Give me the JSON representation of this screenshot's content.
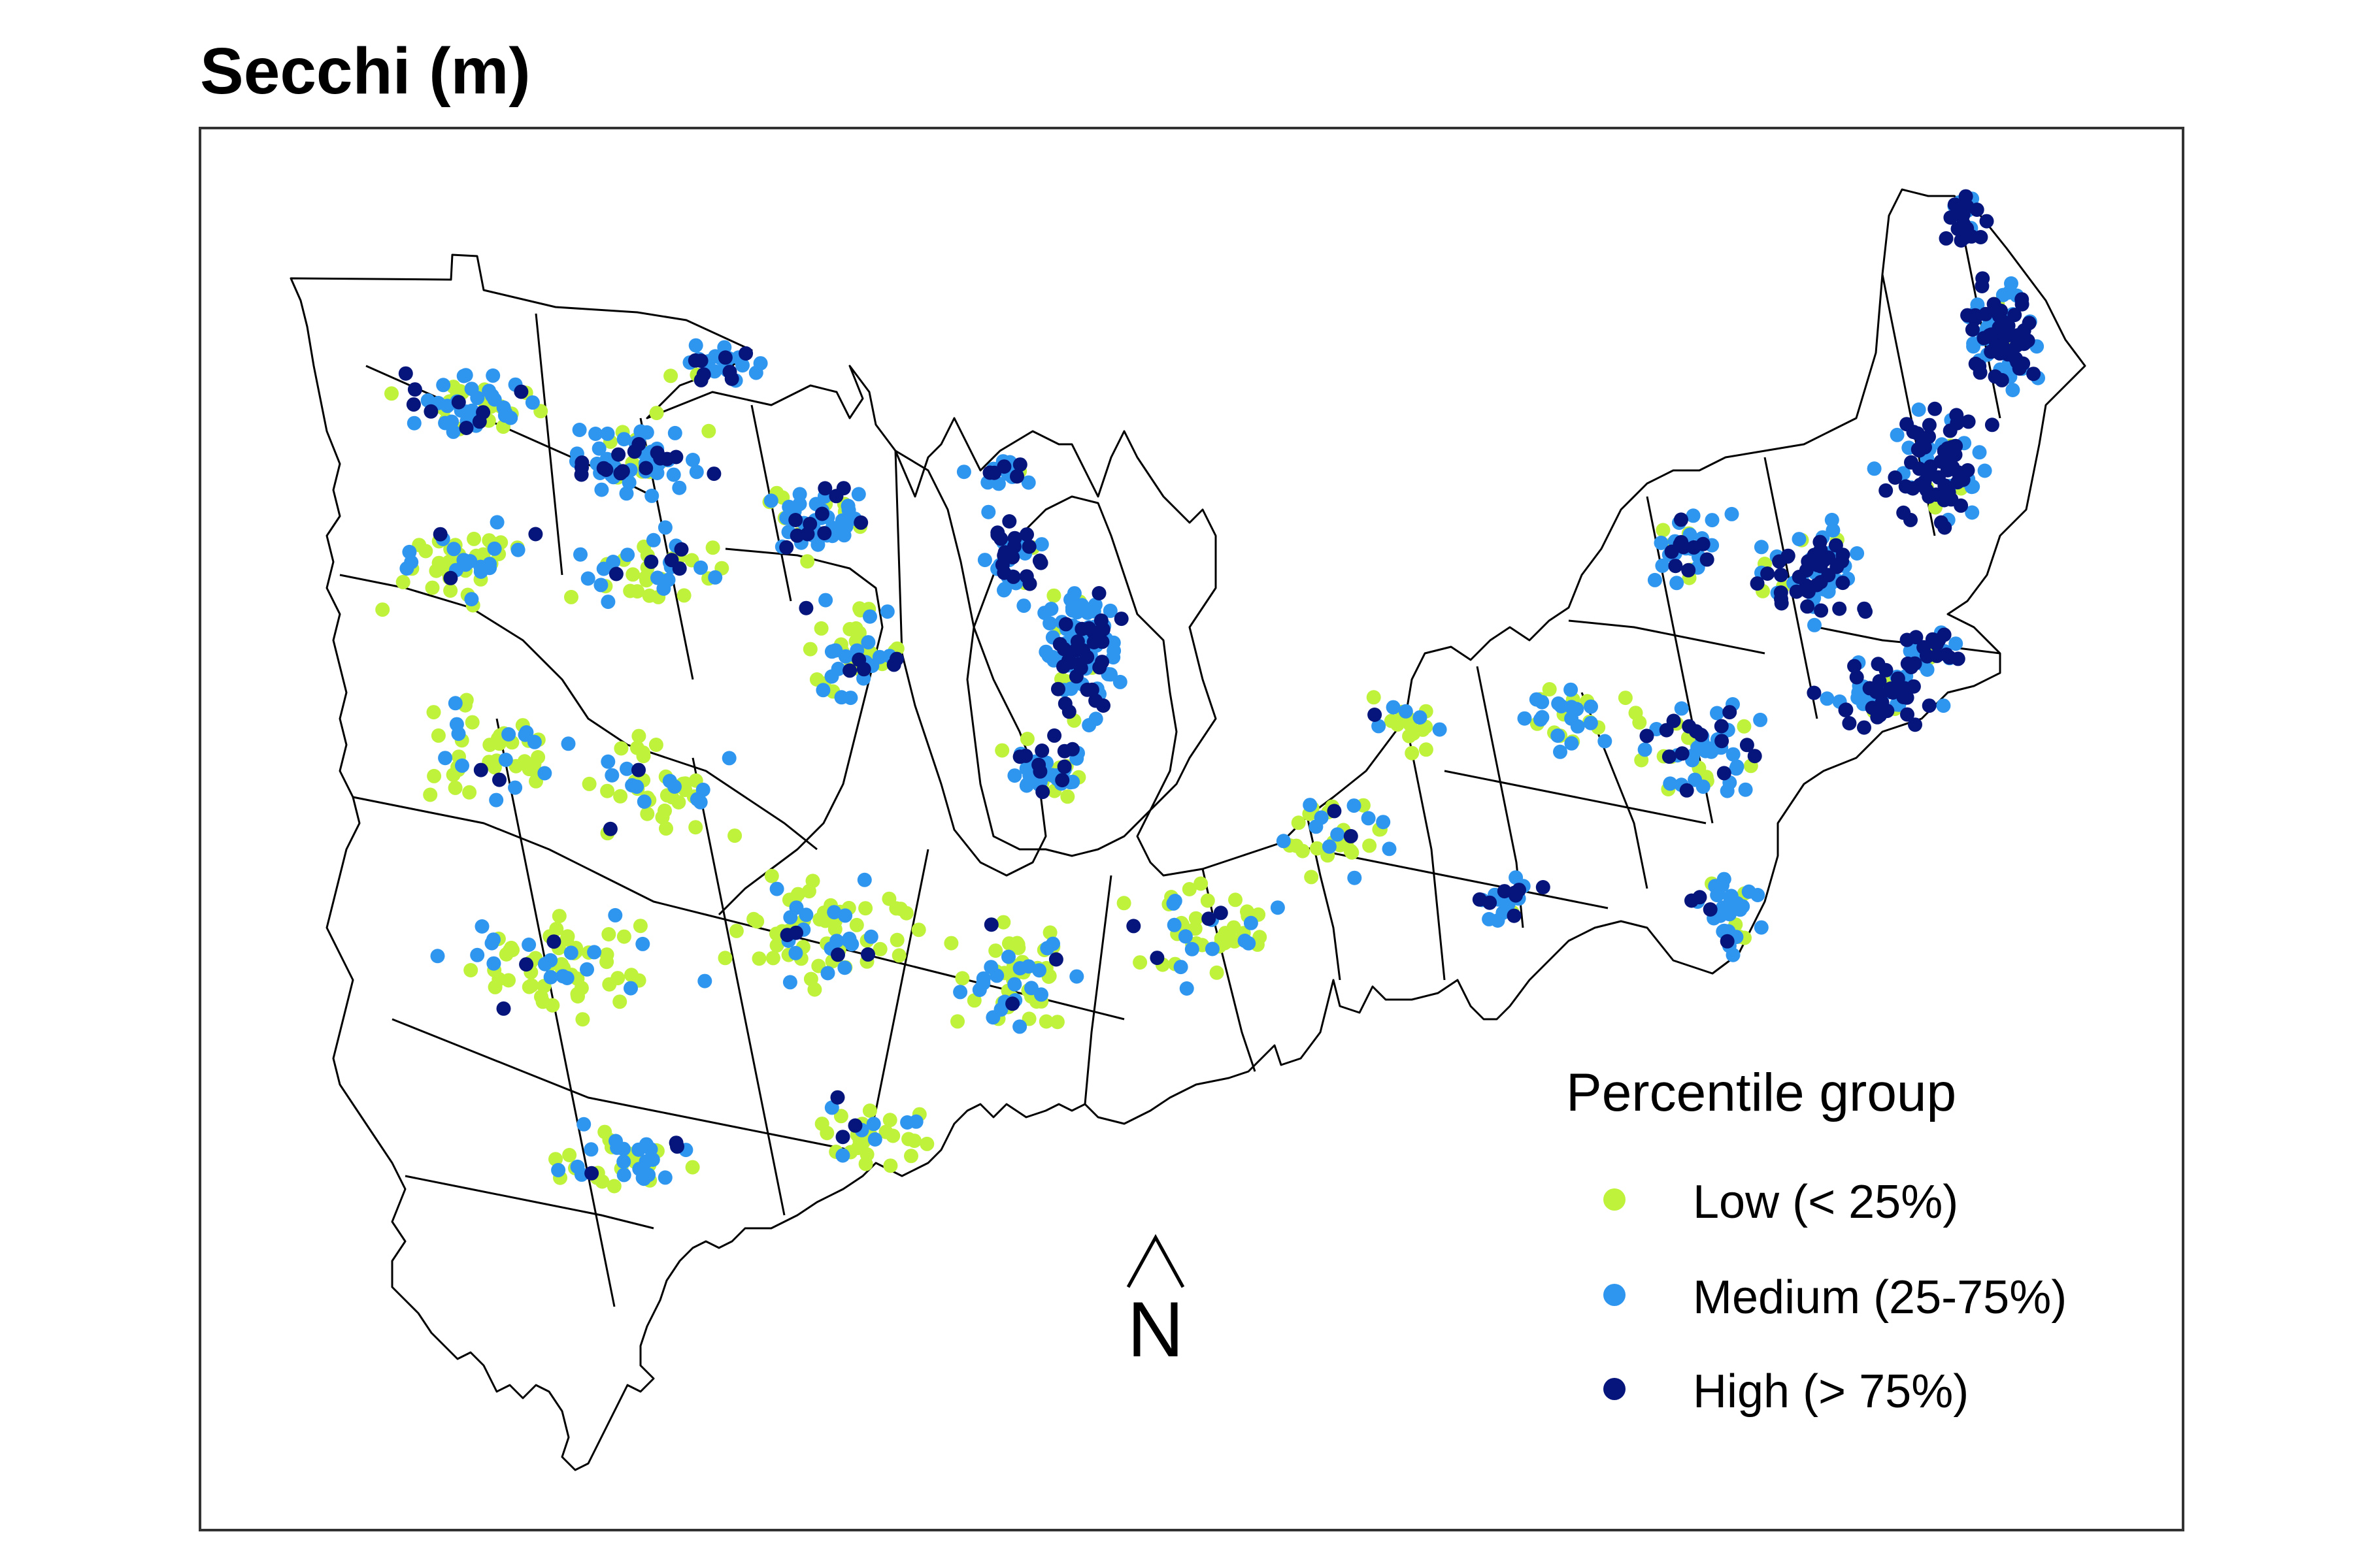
{
  "title": "Secchi (m)",
  "north_arrow": {
    "label": "N"
  },
  "legend": {
    "title": "Percentile group",
    "items": [
      {
        "label": "Low (< 25%)",
        "color": "#bff23a",
        "group": "low"
      },
      {
        "label": "Medium (25-75%)",
        "color": "#2f96f0",
        "group": "medium"
      },
      {
        "label": "High (> 75%)",
        "color": "#06157c",
        "group": "high"
      }
    ]
  },
  "colors": {
    "boundary_stroke": "#000000",
    "frame_stroke": "#333333",
    "low": "#bff23a",
    "medium": "#2f96f0",
    "high": "#06157c"
  }
}
